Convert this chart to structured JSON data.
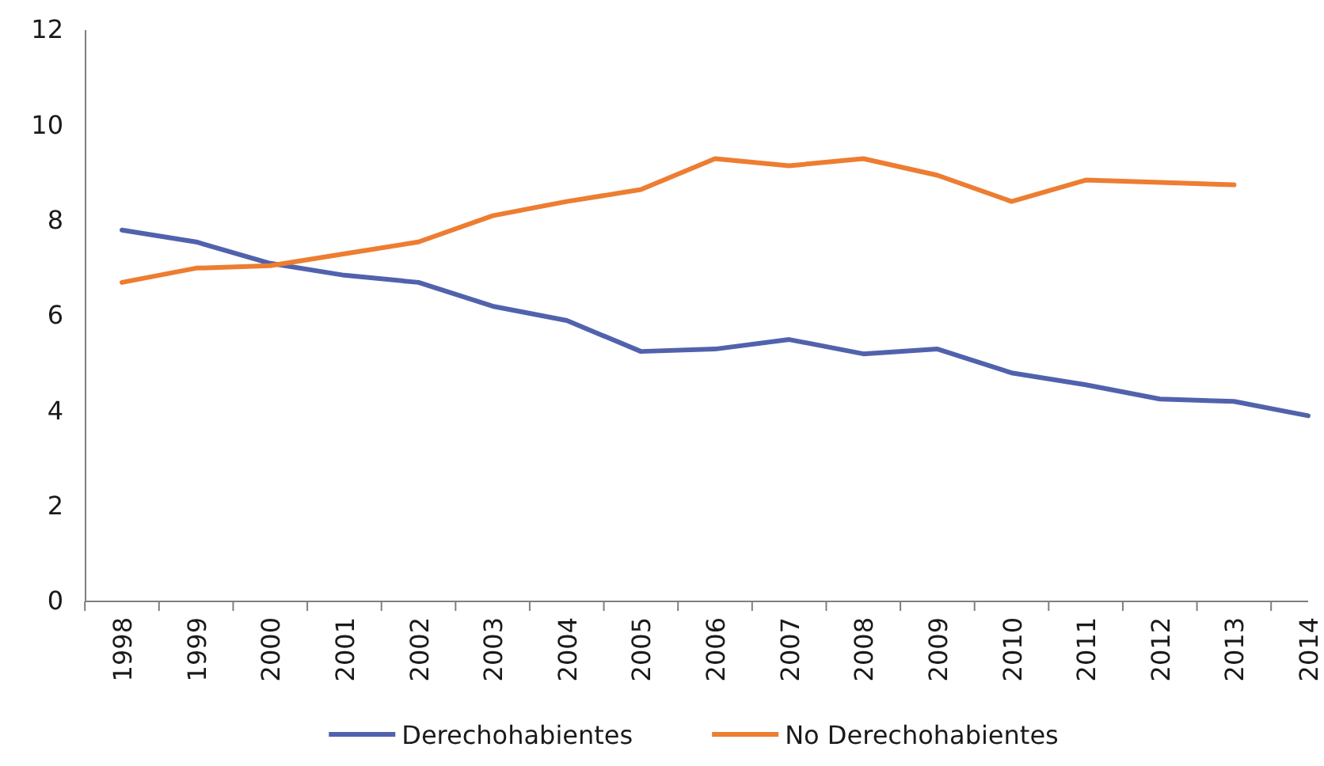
{
  "chart_data": {
    "type": "line",
    "categories": [
      "1998",
      "1999",
      "2000",
      "2001",
      "2002",
      "2003",
      "2004",
      "2005",
      "2006",
      "2007",
      "2008",
      "2009",
      "2010",
      "2011",
      "2012",
      "2013",
      "2014"
    ],
    "series": [
      {
        "name": "Derechohabientes",
        "color": "#5162ad",
        "values": [
          7.8,
          7.55,
          7.1,
          6.85,
          6.7,
          6.2,
          5.9,
          5.25,
          5.3,
          5.5,
          5.2,
          5.3,
          4.8,
          4.55,
          4.25,
          4.2,
          3.9
        ]
      },
      {
        "name": "No Derechohabientes",
        "color": "#ed7d31",
        "values": [
          6.7,
          7.0,
          7.05,
          7.3,
          7.55,
          8.1,
          8.4,
          8.65,
          9.3,
          9.15,
          9.3,
          8.95,
          8.4,
          8.85,
          8.8,
          8.75,
          null
        ]
      }
    ],
    "ylim": [
      0,
      12
    ],
    "yticks": [
      0,
      2,
      4,
      6,
      8,
      10,
      12
    ],
    "grid": false,
    "legend": "bottom",
    "marker": "none",
    "line_style": "solid"
  }
}
